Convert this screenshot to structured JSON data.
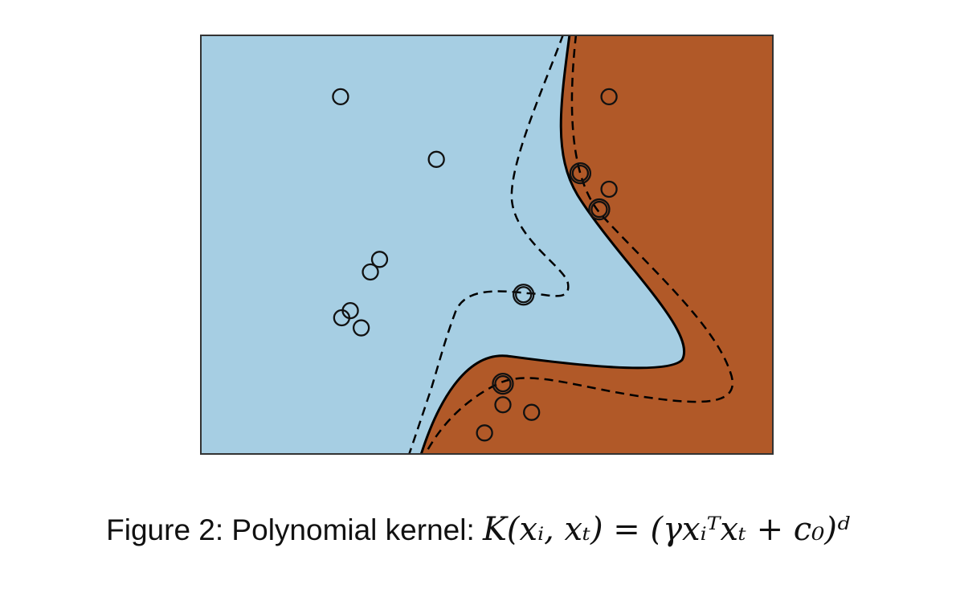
{
  "caption": {
    "prefix": "Figure 2: Polynomial kernel: ",
    "formula": "K(xᵢ, xₜ) = (γxᵢᵀxₜ + c₀)ᵈ"
  },
  "chart_data": {
    "type": "scatter",
    "title": "",
    "xlabel": "",
    "ylabel": "",
    "ticks": "none",
    "legend": "none",
    "grid": false,
    "colors": {
      "class_a": "#a6cee3",
      "class_b": "#b15928",
      "points": "#111111",
      "boundary": "#000000"
    },
    "description_kind": "SVM decision regions with solid decision boundary and dashed margins",
    "series": [
      {
        "values": [
          [
            0.245,
            0.852
          ],
          [
            0.412,
            0.703
          ],
          [
            0.313,
            0.465
          ],
          [
            0.297,
            0.435
          ],
          [
            0.262,
            0.343
          ],
          [
            0.247,
            0.326
          ],
          [
            0.281,
            0.302
          ],
          [
            0.564,
            0.381
          ]
        ]
      },
      {
        "values": [
          [
            0.713,
            0.852
          ],
          [
            0.663,
            0.67
          ],
          [
            0.713,
            0.632
          ],
          [
            0.696,
            0.584
          ],
          [
            0.528,
            0.169
          ],
          [
            0.528,
            0.119
          ],
          [
            0.578,
            0.101
          ],
          [
            0.496,
            0.052
          ]
        ]
      }
    ],
    "support_vectors": [
      [
        0.663,
        0.67
      ],
      [
        0.696,
        0.584
      ],
      [
        0.564,
        0.381
      ],
      [
        0.528,
        0.169
      ]
    ]
  }
}
